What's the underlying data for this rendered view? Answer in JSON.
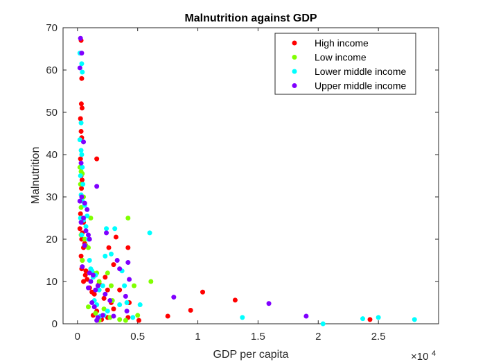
{
  "chart_data": {
    "type": "scatter",
    "title": "Malnutrition against GDP",
    "xlabel": "GDP per capita",
    "ylabel": "Malnutrition",
    "x_exponent_label": "×10",
    "x_exponent_power": "4",
    "xlim": [
      -1200,
      30000
    ],
    "ylim": [
      0,
      70
    ],
    "x_ticks": [
      0,
      5000,
      10000,
      15000,
      20000,
      25000
    ],
    "x_tick_labels": [
      "0",
      "0.5",
      "1",
      "1.5",
      "2",
      "2.5"
    ],
    "y_ticks": [
      0,
      10,
      20,
      30,
      40,
      50,
      60,
      70
    ],
    "y_tick_labels": [
      "0",
      "10",
      "20",
      "30",
      "40",
      "50",
      "60",
      "70"
    ],
    "grid": false,
    "legend_position": "top-right",
    "series": [
      {
        "name": "High income",
        "color": "#ff0000",
        "points": [
          [
            300,
            67
          ],
          [
            350,
            58
          ],
          [
            320,
            52
          ],
          [
            380,
            51
          ],
          [
            250,
            48.5
          ],
          [
            300,
            45.5
          ],
          [
            350,
            44
          ],
          [
            250,
            39
          ],
          [
            300,
            35
          ],
          [
            380,
            34
          ],
          [
            330,
            32
          ],
          [
            250,
            26
          ],
          [
            450,
            25
          ],
          [
            500,
            24
          ],
          [
            200,
            22.5
          ],
          [
            400,
            21.5
          ],
          [
            350,
            20
          ],
          [
            600,
            19
          ],
          [
            500,
            18
          ],
          [
            300,
            16
          ],
          [
            400,
            15
          ],
          [
            350,
            13
          ],
          [
            700,
            12.5
          ],
          [
            650,
            11.5
          ],
          [
            500,
            10
          ],
          [
            800,
            10.5
          ],
          [
            1000,
            8.5
          ],
          [
            1400,
            7
          ],
          [
            1200,
            7.5
          ],
          [
            1800,
            9.5
          ],
          [
            1600,
            39
          ],
          [
            1600,
            3
          ],
          [
            1700,
            1.5
          ],
          [
            2000,
            1
          ],
          [
            2200,
            6
          ],
          [
            2500,
            8
          ],
          [
            2600,
            18
          ],
          [
            3000,
            14
          ],
          [
            3200,
            20.5
          ],
          [
            3500,
            8
          ],
          [
            2800,
            5
          ],
          [
            3000,
            3.5
          ],
          [
            4200,
            18
          ],
          [
            4300,
            5
          ],
          [
            4200,
            1.5
          ],
          [
            5100,
            0.8
          ],
          [
            7500,
            1.8
          ],
          [
            9400,
            3.2
          ],
          [
            10400,
            7.5
          ],
          [
            13100,
            5.6
          ],
          [
            24300,
            1
          ],
          [
            2500,
            1.5
          ],
          [
            1300,
            2
          ],
          [
            2300,
            11
          ]
        ]
      },
      {
        "name": "Low income",
        "color": "#80ff00",
        "points": [
          [
            200,
            37
          ],
          [
            300,
            36
          ],
          [
            400,
            35.5
          ],
          [
            250,
            33
          ],
          [
            500,
            30
          ],
          [
            300,
            27.5
          ],
          [
            450,
            25
          ],
          [
            300,
            21
          ],
          [
            600,
            20
          ],
          [
            700,
            18.5
          ],
          [
            900,
            18
          ],
          [
            400,
            15
          ],
          [
            1100,
            25
          ],
          [
            1300,
            12
          ],
          [
            1600,
            12
          ],
          [
            1800,
            10
          ],
          [
            2500,
            12
          ],
          [
            2800,
            9
          ],
          [
            2900,
            5.5
          ],
          [
            4200,
            25
          ],
          [
            4700,
            9
          ],
          [
            6100,
            10
          ],
          [
            5000,
            2
          ],
          [
            3500,
            1
          ],
          [
            4000,
            0.8
          ],
          [
            2700,
            1.5
          ],
          [
            1800,
            0.8
          ],
          [
            1500,
            2.5
          ],
          [
            900,
            4
          ],
          [
            2200,
            3.5
          ]
        ]
      },
      {
        "name": "Lower middle income",
        "color": "#00ffff",
        "points": [
          [
            200,
            64
          ],
          [
            350,
            61.5
          ],
          [
            400,
            59.5
          ],
          [
            300,
            47.5
          ],
          [
            200,
            43.5
          ],
          [
            300,
            41
          ],
          [
            350,
            40
          ],
          [
            400,
            37
          ],
          [
            250,
            35
          ],
          [
            450,
            33
          ],
          [
            300,
            30.5
          ],
          [
            400,
            29
          ],
          [
            600,
            28
          ],
          [
            250,
            25
          ],
          [
            500,
            24.5
          ],
          [
            700,
            23
          ],
          [
            800,
            25.5
          ],
          [
            350,
            21
          ],
          [
            900,
            20
          ],
          [
            1000,
            15
          ],
          [
            1100,
            13
          ],
          [
            1200,
            12.5
          ],
          [
            1300,
            11
          ],
          [
            1500,
            11.5
          ],
          [
            1800,
            8
          ],
          [
            1400,
            5.5
          ],
          [
            1600,
            4.5
          ],
          [
            2100,
            9
          ],
          [
            2300,
            16
          ],
          [
            2400,
            22.5
          ],
          [
            2800,
            16.5
          ],
          [
            3100,
            22.5
          ],
          [
            3700,
            12.5
          ],
          [
            3900,
            9
          ],
          [
            4100,
            5
          ],
          [
            3500,
            4.5
          ],
          [
            5200,
            4.5
          ],
          [
            6000,
            21.5
          ],
          [
            4600,
            1.5
          ],
          [
            2500,
            3
          ],
          [
            2200,
            2
          ],
          [
            1900,
            1.8
          ],
          [
            13700,
            1.5
          ],
          [
            20400,
            0
          ],
          [
            23700,
            1.2
          ],
          [
            25000,
            1.5
          ],
          [
            28000,
            1
          ]
        ]
      },
      {
        "name": "Upper middle income",
        "color": "#8000ff",
        "points": [
          [
            250,
            67.5
          ],
          [
            350,
            64
          ],
          [
            200,
            60.5
          ],
          [
            500,
            43
          ],
          [
            300,
            38
          ],
          [
            350,
            30
          ],
          [
            200,
            29
          ],
          [
            600,
            28.5
          ],
          [
            800,
            27
          ],
          [
            500,
            25
          ],
          [
            300,
            24
          ],
          [
            700,
            22
          ],
          [
            900,
            21
          ],
          [
            1000,
            20
          ],
          [
            600,
            18.5
          ],
          [
            400,
            13.5
          ],
          [
            1000,
            12
          ],
          [
            1300,
            11.5
          ],
          [
            1100,
            10
          ],
          [
            900,
            8.5
          ],
          [
            1200,
            5
          ],
          [
            1500,
            8
          ],
          [
            1700,
            9
          ],
          [
            1400,
            4
          ],
          [
            1600,
            32.5
          ],
          [
            2400,
            21.5
          ],
          [
            2300,
            7
          ],
          [
            2700,
            5.5
          ],
          [
            3300,
            15
          ],
          [
            3500,
            13
          ],
          [
            4000,
            6.5
          ],
          [
            4200,
            14.5
          ],
          [
            4300,
            10.5
          ],
          [
            4100,
            3
          ],
          [
            3000,
            1.8
          ],
          [
            2100,
            2
          ],
          [
            8000,
            6.3
          ],
          [
            15900,
            4.8
          ],
          [
            19000,
            1.8
          ],
          [
            1600,
            0.8
          ],
          [
            1700,
            1.5
          ]
        ]
      }
    ]
  }
}
